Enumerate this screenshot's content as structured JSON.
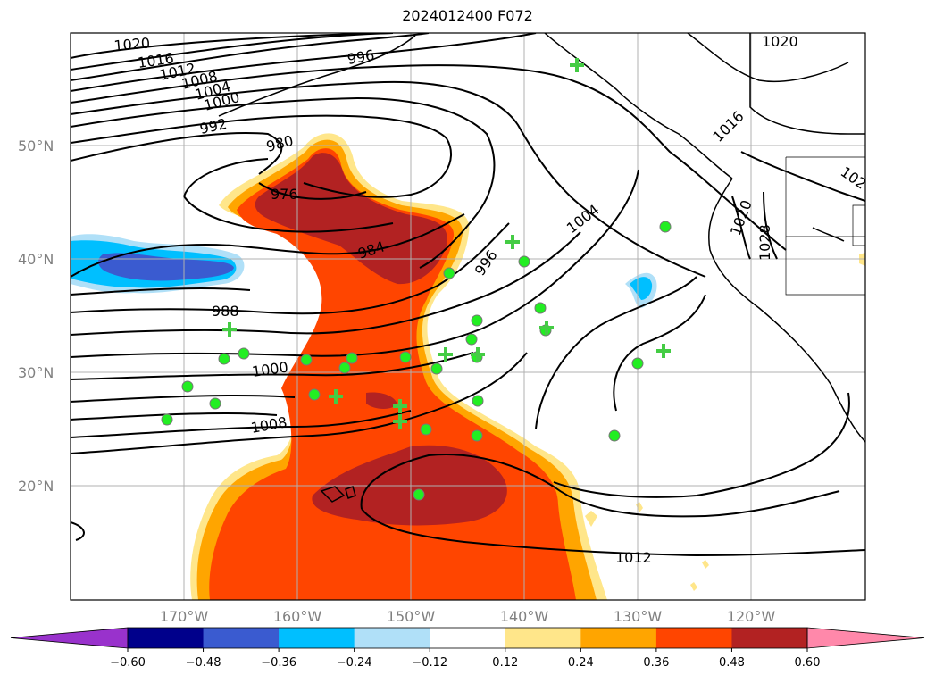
{
  "title": "2024012400 F072",
  "latitude_labels": [
    "50°N",
    "40°N",
    "30°N",
    "20°N"
  ],
  "longitude_labels": [
    "170°W",
    "160°W",
    "150°W",
    "140°W",
    "130°W",
    "120°W"
  ],
  "isobar_labels": [
    "1020",
    "1016",
    "1012",
    "1008",
    "1004",
    "1000",
    "996",
    "992",
    "980",
    "976",
    "984",
    "988",
    "1000",
    "1008",
    "996",
    "1004",
    "1016",
    "1020",
    "1028",
    "1012",
    "1020",
    "102"
  ],
  "colorbar": {
    "ticks": [
      "−0.60",
      "−0.48",
      "−0.36",
      "−0.24",
      "−0.12",
      "0.12",
      "0.24",
      "0.36",
      "0.48",
      "0.60"
    ],
    "colors": [
      "#9932cc",
      "#00008b",
      "#3a5bd0",
      "#00bfff",
      "#b0e0f8",
      "#ffffff",
      "#ffe68a",
      "#ffa500",
      "#ff4500",
      "#b22222",
      "#ff88aa"
    ]
  },
  "station_colors": {
    "circle": "#22ee22",
    "plus": "#44cc44"
  }
}
